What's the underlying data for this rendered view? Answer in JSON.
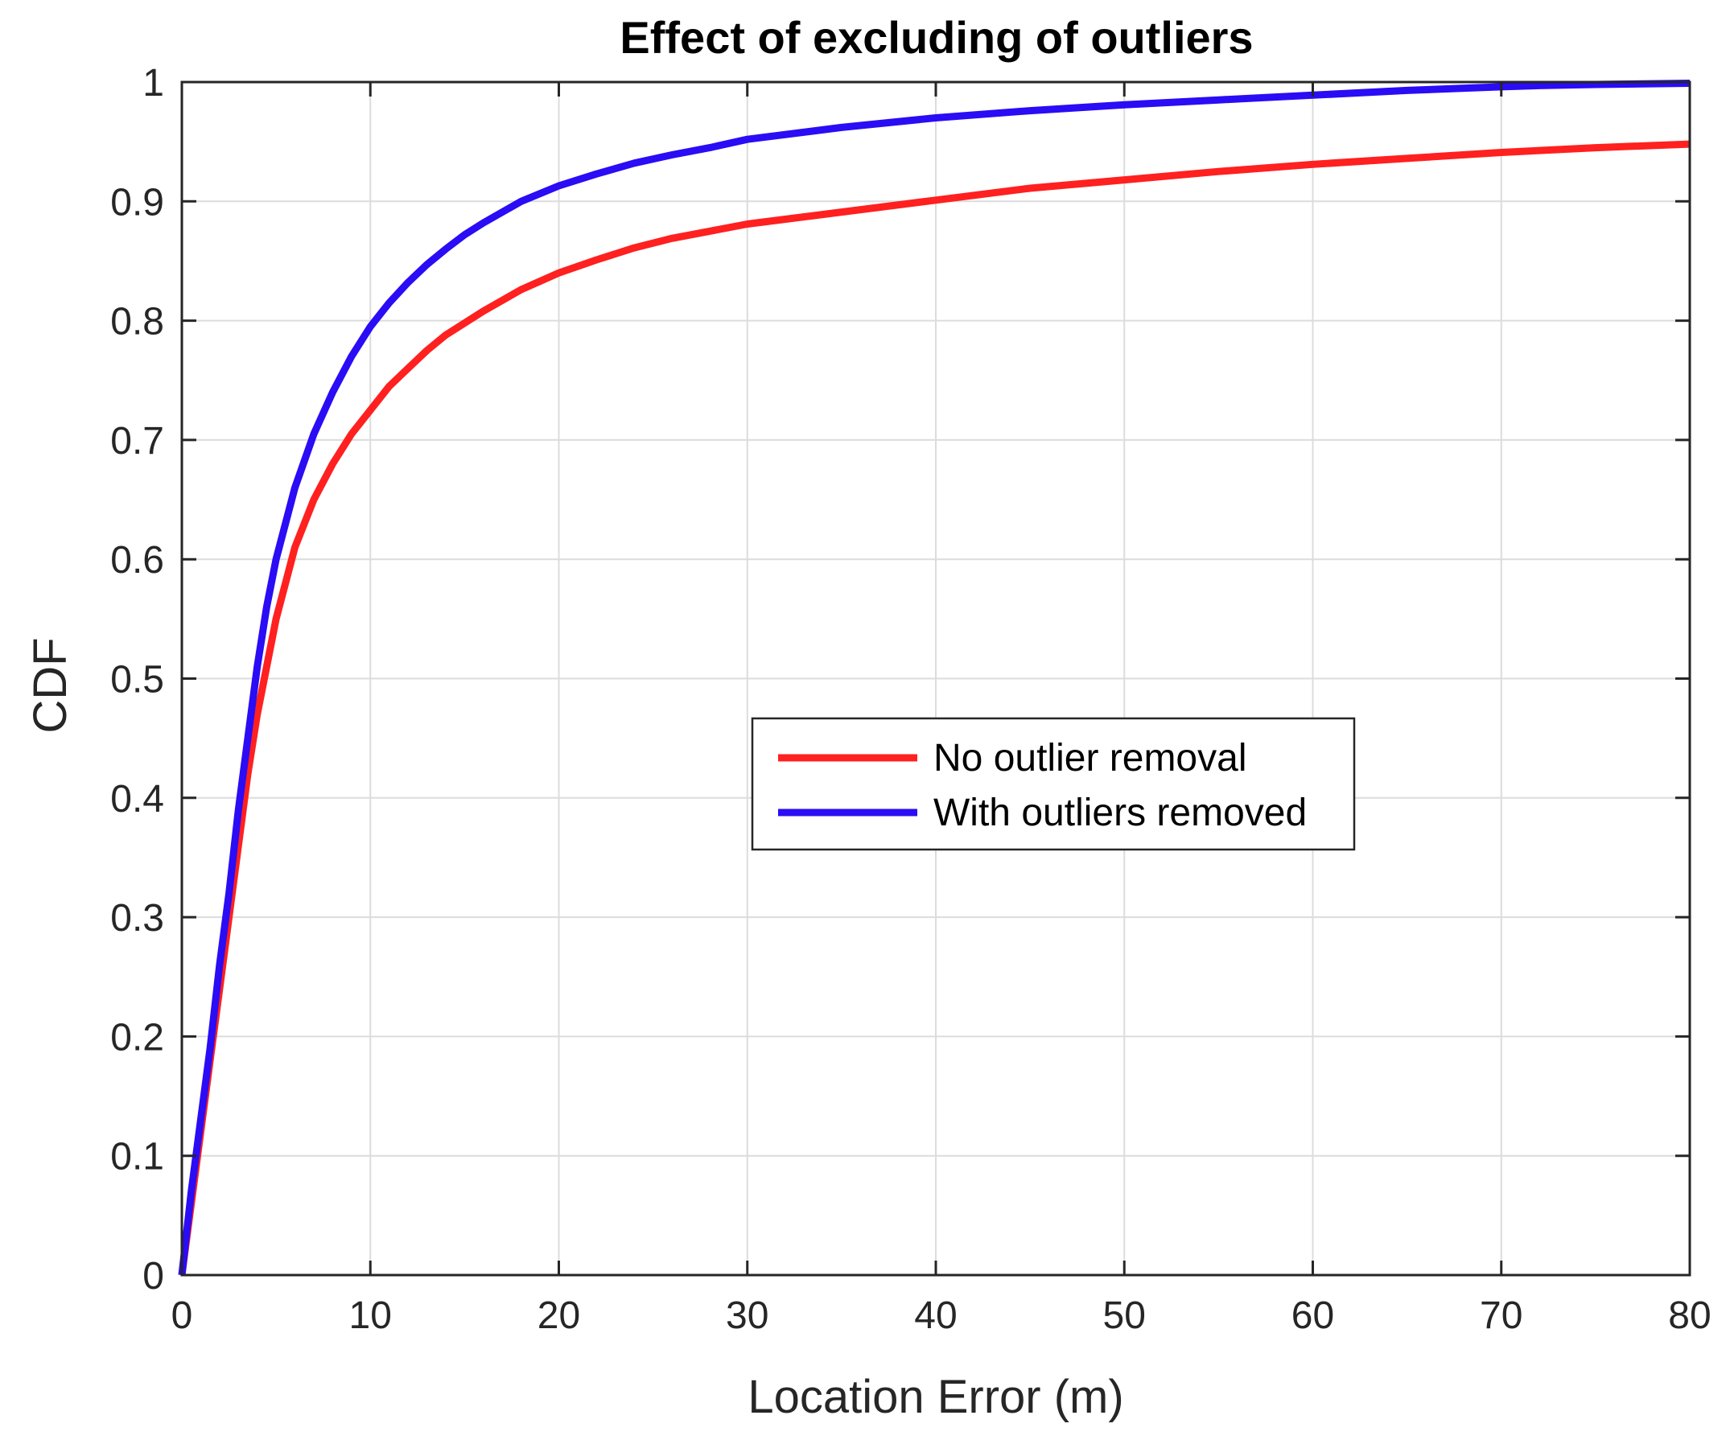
{
  "chart_data": {
    "type": "line",
    "title": "Effect of excluding of outliers",
    "xlabel": "Location Error (m)",
    "ylabel": "CDF",
    "xlim": [
      0,
      80
    ],
    "ylim": [
      0,
      1
    ],
    "xticks": [
      "0",
      "10",
      "20",
      "30",
      "40",
      "50",
      "60",
      "70",
      "80"
    ],
    "yticks": [
      "0",
      "0.1",
      "0.2",
      "0.3",
      "0.4",
      "0.5",
      "0.6",
      "0.7",
      "0.8",
      "0.9",
      "1"
    ],
    "grid": true,
    "legend_position": "center-right",
    "series": [
      {
        "name": "No outlier removal",
        "color": "#ff2020",
        "x": [
          0,
          0.5,
          1,
          1.5,
          2,
          2.5,
          3,
          3.5,
          4,
          4.5,
          5,
          5.5,
          6,
          7,
          8,
          9,
          10,
          11,
          12,
          13,
          14,
          15,
          16,
          18,
          20,
          22,
          24,
          26,
          28,
          30,
          35,
          40,
          45,
          50,
          55,
          60,
          65,
          70,
          75,
          80
        ],
        "y": [
          0,
          0.06,
          0.12,
          0.18,
          0.24,
          0.3,
          0.36,
          0.42,
          0.47,
          0.51,
          0.55,
          0.58,
          0.61,
          0.65,
          0.68,
          0.705,
          0.725,
          0.745,
          0.76,
          0.775,
          0.788,
          0.798,
          0.808,
          0.826,
          0.84,
          0.851,
          0.861,
          0.869,
          0.875,
          0.881,
          0.891,
          0.901,
          0.911,
          0.918,
          0.925,
          0.931,
          0.936,
          0.941,
          0.945,
          0.948
        ]
      },
      {
        "name": "With outliers removed",
        "color": "#2a0cf5",
        "x": [
          0,
          0.5,
          1,
          1.5,
          2,
          2.5,
          3,
          3.5,
          4,
          4.5,
          5,
          5.5,
          6,
          7,
          8,
          9,
          10,
          11,
          12,
          13,
          14,
          15,
          16,
          18,
          20,
          22,
          24,
          26,
          28,
          30,
          35,
          40,
          45,
          50,
          55,
          60,
          65,
          70,
          72,
          75,
          80
        ],
        "y": [
          0,
          0.07,
          0.13,
          0.19,
          0.26,
          0.32,
          0.39,
          0.45,
          0.51,
          0.56,
          0.6,
          0.63,
          0.66,
          0.705,
          0.74,
          0.77,
          0.795,
          0.815,
          0.832,
          0.847,
          0.86,
          0.872,
          0.882,
          0.9,
          0.913,
          0.923,
          0.932,
          0.939,
          0.945,
          0.952,
          0.962,
          0.97,
          0.976,
          0.981,
          0.985,
          0.989,
          0.993,
          0.996,
          0.997,
          0.998,
          0.999
        ]
      }
    ]
  }
}
